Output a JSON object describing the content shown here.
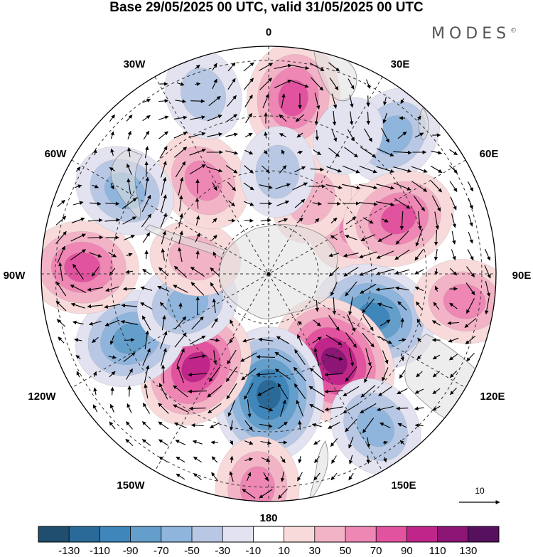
{
  "title": "Base 29/05/2025 00 UTC, valid 31/05/2025 00 UTC",
  "brand": "MODES",
  "brand_mark": "©",
  "longitude_labels": {
    "n0": "0",
    "e30": "30E",
    "e60": "60E",
    "e90": "90E",
    "e120": "120E",
    "e150": "150E",
    "s180": "180",
    "w150": "150W",
    "w120": "120W",
    "w90": "90W",
    "w60": "60W",
    "w30": "30W"
  },
  "reference_vector_label": "10",
  "colorbar": {
    "labels": [
      "-130",
      "-110",
      "-90",
      "-70",
      "-50",
      "-30",
      "-10",
      "10",
      "30",
      "50",
      "70",
      "90",
      "110",
      "130"
    ],
    "colors": [
      "#1f4e6e",
      "#2a6a99",
      "#3f86bb",
      "#649fcc",
      "#8fb5dc",
      "#b8c8e4",
      "#e2e2f0",
      "#ffffff",
      "#f8dada",
      "#f3b3c6",
      "#ee87b4",
      "#e2539f",
      "#c0268a",
      "#8c1575",
      "#57105e"
    ]
  },
  "anomaly_centres": [
    {
      "lon": 8,
      "r_frac": 0.78,
      "value": 70
    },
    {
      "lon": 42,
      "r_frac": 0.82,
      "value": -50
    },
    {
      "lon": 63,
      "r_frac": 0.45,
      "value": 50
    },
    {
      "lon": 30,
      "r_frac": 0.38,
      "value": 30
    },
    {
      "lon": 112,
      "r_frac": 0.5,
      "value": -90
    },
    {
      "lon": 67,
      "r_frac": 0.62,
      "value": 70
    },
    {
      "lon": 98,
      "r_frac": 0.87,
      "value": 50
    },
    {
      "lon": 143,
      "r_frac": 0.48,
      "value": 110
    },
    {
      "lon": 180,
      "r_frac": 0.53,
      "value": -110
    },
    {
      "lon": 145,
      "r_frac": 0.82,
      "value": -50
    },
    {
      "lon": 183,
      "r_frac": 0.94,
      "value": 50
    },
    {
      "lon": 218,
      "r_frac": 0.52,
      "value": 90
    },
    {
      "lon": 245,
      "r_frac": 0.67,
      "value": -70
    },
    {
      "lon": 272,
      "r_frac": 0.82,
      "value": 70
    },
    {
      "lon": 250,
      "r_frac": 0.38,
      "value": -50
    },
    {
      "lon": 282,
      "r_frac": 0.33,
      "value": 30
    },
    {
      "lon": 325,
      "r_frac": 0.5,
      "value": 50
    },
    {
      "lon": 340,
      "r_frac": 0.84,
      "value": -30
    },
    {
      "lon": 5,
      "r_frac": 0.45,
      "value": -30
    },
    {
      "lon": 300,
      "r_frac": 0.73,
      "value": -50
    },
    {
      "lon": 30,
      "r_frac": 0.7,
      "value": -10
    }
  ]
}
